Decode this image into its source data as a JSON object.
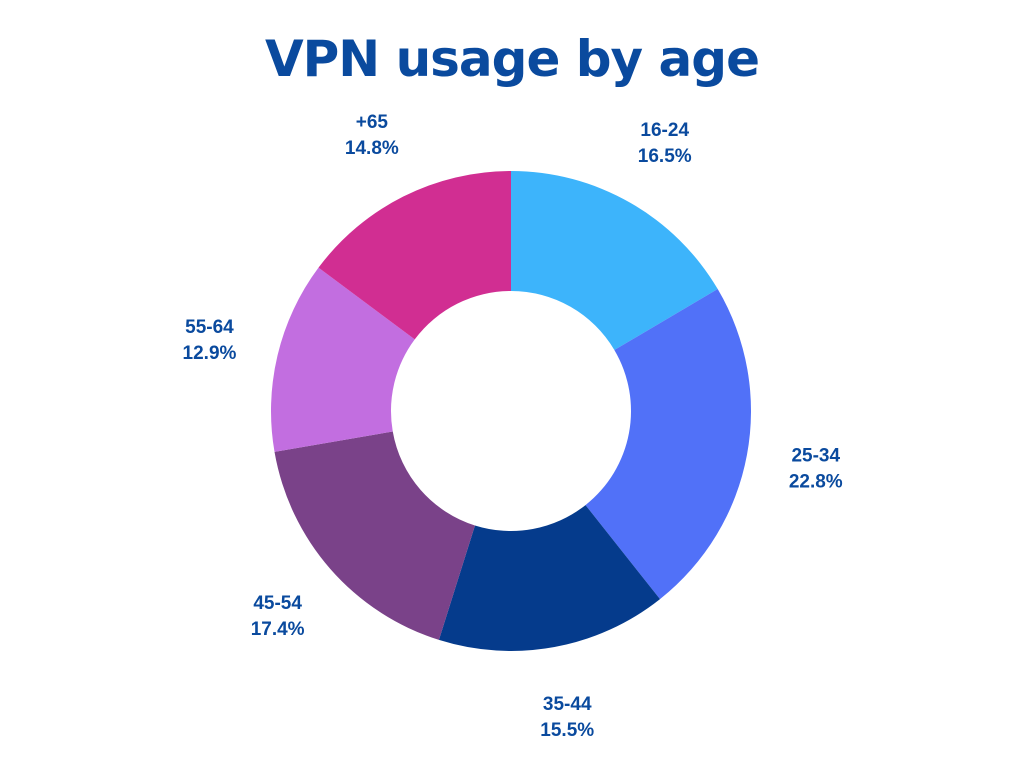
{
  "chart_data": {
    "type": "pie",
    "title": "VPN usage by age",
    "donut": true,
    "label_color": "#0a4a9e",
    "title_color": "#0a4a9e",
    "slices": [
      {
        "label": "16-24",
        "value": 16.5,
        "value_label": "16.5%",
        "color": "#3db4fb"
      },
      {
        "label": "25-34",
        "value": 22.8,
        "value_label": "22.8%",
        "color": "#5171f8"
      },
      {
        "label": "35-44",
        "value": 15.5,
        "value_label": "15.5%",
        "color": "#053b8c"
      },
      {
        "label": "45-54",
        "value": 17.4,
        "value_label": "17.4%",
        "color": "#7a4289"
      },
      {
        "label": "55-64",
        "value": 12.9,
        "value_label": "12.9%",
        "color": "#c26ee0"
      },
      {
        "label": "+65",
        "value": 14.8,
        "value_label": "14.8%",
        "color": "#d12e92"
      }
    ]
  }
}
